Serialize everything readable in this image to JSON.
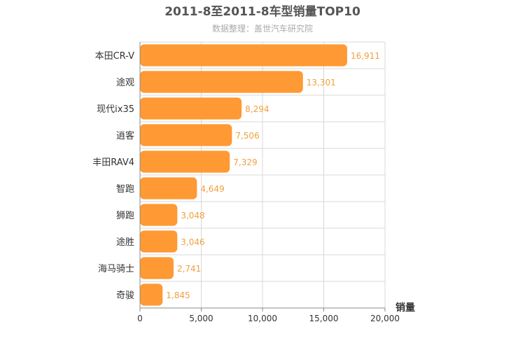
{
  "chart_data": {
    "type": "bar",
    "orientation": "horizontal",
    "title": "2011-8至2011-8车型销量TOP10",
    "subtitle": "数据整理：盖世汽车研究院",
    "xlabel": "销量",
    "categories": [
      "本田CR-V",
      "途观",
      "现代ix35",
      "逍客",
      "丰田RAV4",
      "智跑",
      "狮跑",
      "途胜",
      "海马骑士",
      "奇骏"
    ],
    "values": [
      16911,
      13301,
      8294,
      7506,
      7329,
      4649,
      3048,
      3046,
      2741,
      1845
    ],
    "value_labels": [
      "16,911",
      "13,301",
      "8,294",
      "7,506",
      "7,329",
      "4,649",
      "3,048",
      "3,046",
      "2,741",
      "1,845"
    ],
    "xlim": [
      0,
      20000
    ],
    "ticks": [
      0,
      5000,
      10000,
      15000,
      20000
    ],
    "tick_labels": [
      "0",
      "5,000",
      "10,000",
      "15,000",
      "20,000"
    ],
    "grid": true,
    "colors": {
      "bar": "#ff9933",
      "value_label": "#f0a040",
      "grid": "#d8d8d8",
      "axis": "#888888"
    }
  }
}
